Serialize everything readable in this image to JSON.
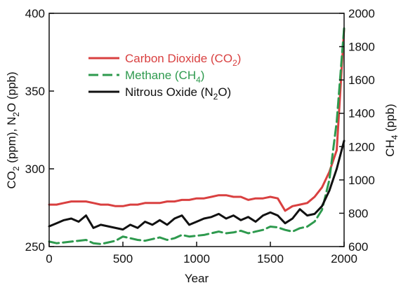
{
  "chart_data": {
    "type": "line",
    "xlabel": "Year",
    "ylabel_left": {
      "main": "CO",
      "s1": "2",
      "mid": " (ppm), N",
      "s2": "2",
      "end": "O (ppb)"
    },
    "ylabel_right": {
      "main": "CH",
      "s1": "4",
      "end": " (ppb)"
    },
    "x_ticks": [
      "0",
      "500",
      "1000",
      "1500",
      "2000"
    ],
    "x_tick_values": [
      0,
      500,
      1000,
      1500,
      2000
    ],
    "left_ticks": [
      "250",
      "300",
      "350",
      "400"
    ],
    "left_tick_values": [
      250,
      300,
      350,
      400
    ],
    "right_ticks": [
      "600",
      "800",
      "1000",
      "1200",
      "1400",
      "1600",
      "1800",
      "2000"
    ],
    "right_tick_values": [
      600,
      800,
      1000,
      1200,
      1400,
      1600,
      1800,
      2000
    ],
    "xlim": [
      0,
      2000
    ],
    "ylim_left": [
      250,
      400
    ],
    "ylim_right": [
      600,
      2000
    ],
    "legend_position": "upper-left",
    "series": [
      {
        "name": "Carbon Dioxide (CO₂)",
        "legend": {
          "main": "Carbon Dioxide (CO",
          "sub": "2",
          "end": ")"
        },
        "axis": "left",
        "color": "#d94040",
        "style": "solid",
        "x": [
          0,
          50,
          100,
          150,
          200,
          250,
          300,
          350,
          400,
          450,
          500,
          550,
          600,
          650,
          700,
          750,
          800,
          850,
          900,
          950,
          1000,
          1050,
          1100,
          1150,
          1200,
          1250,
          1300,
          1350,
          1400,
          1450,
          1500,
          1550,
          1600,
          1650,
          1700,
          1750,
          1800,
          1850,
          1900,
          1950,
          2000
        ],
        "y": [
          277,
          277,
          278,
          279,
          279,
          279,
          278,
          277,
          277,
          276,
          276,
          277,
          277,
          278,
          278,
          278,
          279,
          279,
          280,
          280,
          281,
          281,
          282,
          283,
          283,
          282,
          282,
          280,
          281,
          281,
          282,
          281,
          273,
          276,
          277,
          278,
          282,
          288,
          298,
          312,
          390
        ]
      },
      {
        "name": "Methane (CH₄)",
        "legend": {
          "main": "Methane (CH",
          "sub": "4",
          "end": ")"
        },
        "axis": "right",
        "color": "#2e9a4e",
        "style": "dashed",
        "x": [
          0,
          50,
          100,
          150,
          200,
          250,
          300,
          350,
          400,
          450,
          500,
          550,
          600,
          650,
          700,
          750,
          800,
          850,
          900,
          950,
          1000,
          1050,
          1100,
          1150,
          1200,
          1250,
          1300,
          1350,
          1400,
          1450,
          1500,
          1550,
          1600,
          1650,
          1700,
          1750,
          1800,
          1850,
          1900,
          1950,
          2000
        ],
        "y": [
          630,
          620,
          625,
          630,
          635,
          640,
          620,
          615,
          625,
          635,
          660,
          650,
          640,
          635,
          645,
          655,
          640,
          650,
          670,
          660,
          665,
          670,
          680,
          690,
          680,
          685,
          695,
          680,
          690,
          700,
          720,
          715,
          700,
          690,
          710,
          720,
          750,
          820,
          1000,
          1350,
          1910
        ]
      },
      {
        "name": "Nitrous Oxide (N₂O)",
        "legend": {
          "main": "Nitrous Oxide (N",
          "sub": "2",
          "end": "O)"
        },
        "axis": "left",
        "color": "#111111",
        "style": "solid",
        "x": [
          0,
          50,
          100,
          150,
          200,
          250,
          300,
          350,
          400,
          450,
          500,
          550,
          600,
          650,
          700,
          750,
          800,
          850,
          900,
          950,
          1000,
          1050,
          1100,
          1150,
          1200,
          1250,
          1300,
          1350,
          1400,
          1450,
          1500,
          1550,
          1600,
          1650,
          1700,
          1750,
          1800,
          1850,
          1900,
          1950,
          2000
        ],
        "y": [
          263,
          265,
          267,
          268,
          266,
          270,
          262,
          264,
          263,
          262,
          261,
          264,
          262,
          266,
          264,
          267,
          264,
          268,
          270,
          264,
          266,
          268,
          269,
          271,
          268,
          270,
          267,
          269,
          266,
          270,
          272,
          270,
          265,
          268,
          274,
          270,
          271,
          276,
          286,
          300,
          318
        ]
      }
    ]
  }
}
